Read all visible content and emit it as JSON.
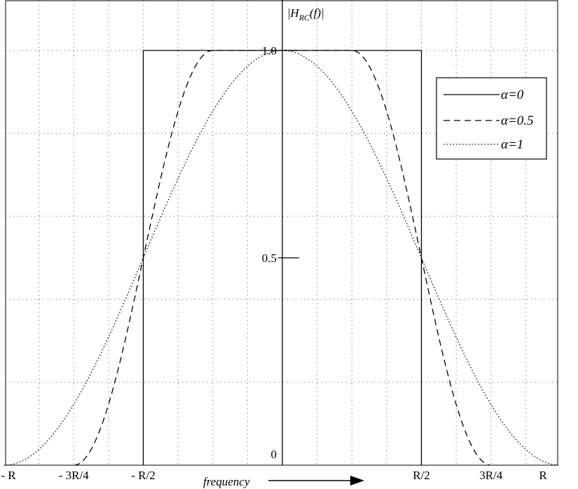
{
  "chart_data": {
    "type": "line",
    "title": "",
    "xlabel": "frequency",
    "ylabel": "|H_RC(f)|",
    "ylabel_parts": {
      "pre": "|",
      "H": "H",
      "sub": "RC",
      "post": "(f)|"
    },
    "xlim": [
      -1,
      1
    ],
    "ylim": [
      0,
      1.15
    ],
    "grid": true,
    "legend_position": "top-right",
    "x_ticks": [
      {
        "value": -1,
        "label": "- R"
      },
      {
        "value": -0.75,
        "label": "- 3R/4"
      },
      {
        "value": -0.5,
        "label": "- R/2"
      },
      {
        "value": 0.5,
        "label": "R/2"
      },
      {
        "value": 0.75,
        "label": "3R/4"
      },
      {
        "value": 1,
        "label": "R"
      }
    ],
    "y_ticks": [
      {
        "value": 0,
        "label": "0"
      },
      {
        "value": 0.5,
        "label": "0.5"
      },
      {
        "value": 1.0,
        "label": "1.0"
      }
    ],
    "series": [
      {
        "name": "α=0",
        "style": "solid",
        "alpha": 0
      },
      {
        "name": "α=0.5",
        "style": "dashed",
        "alpha": 0.5
      },
      {
        "name": "α=1",
        "style": "dotted",
        "alpha": 1
      }
    ],
    "x_unit": "R"
  },
  "colors": {
    "line": "#000000",
    "grid": "#555555",
    "background": "#ffffff"
  }
}
